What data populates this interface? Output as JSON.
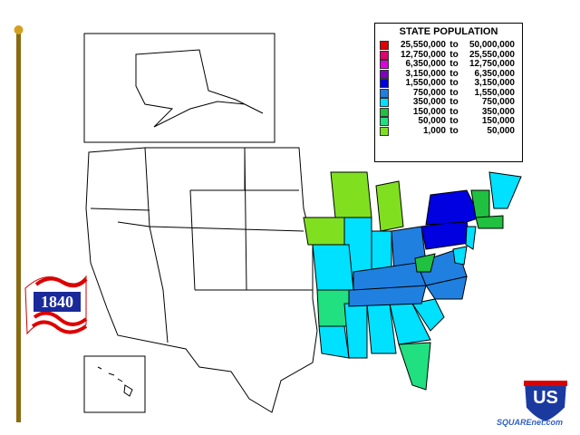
{
  "legend": {
    "title": "STATE POPULATION",
    "rows": [
      {
        "from": "25,550,000",
        "joiner": "to",
        "to": "50,000,000",
        "color": "#e00000"
      },
      {
        "from": "12,750,000",
        "joiner": "to",
        "to": "25,550,000",
        "color": "#e0006e"
      },
      {
        "from": "6,350,000",
        "joiner": "to",
        "to": "12,750,000",
        "color": "#e000e0"
      },
      {
        "from": "3,150,000",
        "joiner": "to",
        "to": "6,350,000",
        "color": "#8000c0"
      },
      {
        "from": "1,550,000",
        "joiner": "to",
        "to": "3,150,000",
        "color": "#0000e0"
      },
      {
        "from": "750,000",
        "joiner": "to",
        "to": "1,550,000",
        "color": "#2080e0"
      },
      {
        "from": "350,000",
        "joiner": "to",
        "to": "750,000",
        "color": "#00e0ff"
      },
      {
        "from": "150,000",
        "joiner": "to",
        "to": "350,000",
        "color": "#20c040"
      },
      {
        "from": "50,000",
        "joiner": "to",
        "to": "150,000",
        "color": "#20e080"
      },
      {
        "from": "1,000",
        "joiner": "to",
        "to": "50,000",
        "color": "#80e020"
      }
    ]
  },
  "year": "1840",
  "shield_label": "US",
  "watermark": "SQUAREnet.com"
}
